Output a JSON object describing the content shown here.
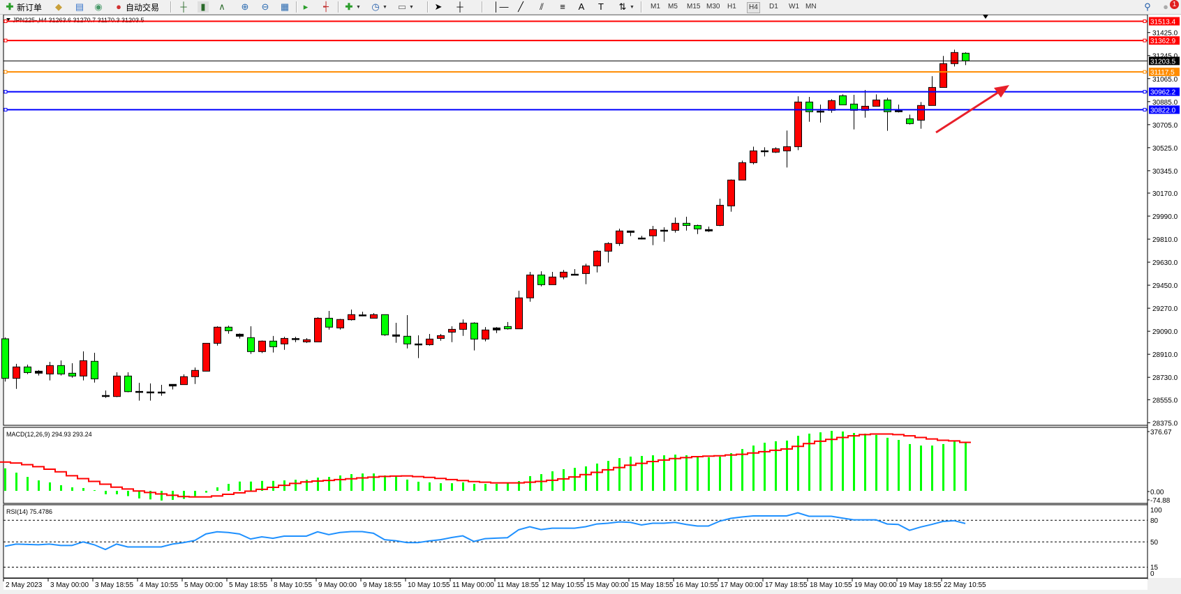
{
  "toolbar": {
    "new_order_label": "新订单",
    "autotrading_label": "自动交易",
    "timeframes": [
      "M1",
      "M5",
      "M15",
      "M30",
      "H1",
      "H4",
      "D1",
      "W1",
      "MN"
    ],
    "active_timeframe": "H4",
    "notification_count": "1"
  },
  "chart": {
    "header": "JPN225-,H4  31263.6 31270.7 31170.3 31203.5",
    "colors": {
      "bull": "#ff0000",
      "bear": "#00ff00",
      "macd_hist": "#00ff00",
      "macd_signal": "#ff0000",
      "rsi": "#1e90ff",
      "arrow": "#e8202a"
    },
    "price_ticks": [
      "31425.0",
      "31245.0",
      "31065.0",
      "30885.0",
      "30705.0",
      "30525.0",
      "30345.0",
      "30170.0",
      "29990.0",
      "29810.0",
      "29630.0",
      "29450.0",
      "29270.0",
      "29090.0",
      "28910.0",
      "28730.0",
      "28555.0",
      "28375.0"
    ],
    "levels": [
      {
        "price": 31513.4,
        "label": "31513.4",
        "color": "#ff0000"
      },
      {
        "price": 31362.9,
        "label": "31362.9",
        "color": "#ff0000"
      },
      {
        "price": 31203.5,
        "label": "31203.5",
        "color": "#000000"
      },
      {
        "price": 31117.5,
        "label": "31117.5",
        "color": "#ff8c00"
      },
      {
        "price": 30962.2,
        "label": "30962.2",
        "color": "#0000ff"
      },
      {
        "price": 30822.0,
        "label": "30822.0",
        "color": "#0000ff"
      }
    ],
    "time_labels": [
      "2 May 2023",
      "3 May 00:00",
      "3 May 18:55",
      "4 May 10:55",
      "5 May 00:00",
      "5 May 18:55",
      "8 May 10:55",
      "9 May 00:00",
      "9 May 18:55",
      "10 May 10:55",
      "11 May 00:00",
      "11 May 18:55",
      "12 May 10:55",
      "15 May 00:00",
      "15 May 18:55",
      "16 May 10:55",
      "17 May 00:00",
      "17 May 18:55",
      "18 May 10:55",
      "19 May 00:00",
      "19 May 18:55",
      "22 May 10:55"
    ]
  },
  "chart_data": {
    "type": "candlestick",
    "symbol": "JPN225-",
    "timeframe": "H4",
    "ylim": [
      28375,
      31513.4
    ],
    "ohlc": [
      [
        29031,
        29042,
        28697,
        28722
      ],
      [
        28722,
        28835,
        28640,
        28811
      ],
      [
        28811,
        28829,
        28755,
        28767
      ],
      [
        28778,
        28786,
        28744,
        28762
      ],
      [
        28756,
        28851,
        28706,
        28822
      ],
      [
        28822,
        28862,
        28744,
        28756
      ],
      [
        28762,
        28840,
        28727,
        28740
      ],
      [
        28740,
        28933,
        28706,
        28860
      ],
      [
        28855,
        28922,
        28689,
        28718
      ],
      [
        28587,
        28627,
        28569,
        28588
      ],
      [
        28580,
        28769,
        28575,
        28740
      ],
      [
        28740,
        28769,
        28613,
        28618
      ],
      [
        28620,
        28687,
        28548,
        28613
      ],
      [
        28615,
        28682,
        28548,
        28616
      ],
      [
        28615,
        28671,
        28586,
        28607
      ],
      [
        28662,
        28675,
        28635,
        28675
      ],
      [
        28673,
        28753,
        28673,
        28735
      ],
      [
        28735,
        28807,
        28678,
        28784
      ],
      [
        28778,
        28996,
        28778,
        28996
      ],
      [
        28996,
        29129,
        28978,
        29122
      ],
      [
        29122,
        29134,
        29071,
        29094
      ],
      [
        29067,
        29073,
        29033,
        29051
      ],
      [
        29040,
        29129,
        28913,
        28931
      ],
      [
        28931,
        29018,
        28920,
        29013
      ],
      [
        29013,
        29053,
        28924,
        28969
      ],
      [
        28991,
        29047,
        28945,
        29034
      ],
      [
        29033,
        29047,
        29005,
        29029
      ],
      [
        29007,
        29036,
        28999,
        29024
      ],
      [
        29007,
        29200,
        29007,
        29192
      ],
      [
        29192,
        29249,
        29103,
        29122
      ],
      [
        29116,
        29187,
        29103,
        29182
      ],
      [
        29180,
        29260,
        29174,
        29220
      ],
      [
        29218,
        29243,
        29207,
        29212
      ],
      [
        29192,
        29232,
        29192,
        29220
      ],
      [
        29220,
        29220,
        29054,
        29062
      ],
      [
        29062,
        29156,
        29000,
        29051
      ],
      [
        29051,
        29216,
        28956,
        28991
      ],
      [
        28991,
        29058,
        28880,
        28985
      ],
      [
        28985,
        29069,
        28978,
        29029
      ],
      [
        29034,
        29069,
        29016,
        29056
      ],
      [
        29083,
        29129,
        29005,
        29105
      ],
      [
        29105,
        29183,
        29054,
        29154
      ],
      [
        29154,
        29160,
        28940,
        29029
      ],
      [
        29029,
        29123,
        29011,
        29100
      ],
      [
        29100,
        29123,
        29076,
        29116
      ],
      [
        29127,
        29162,
        29103,
        29109
      ],
      [
        29109,
        29407,
        29109,
        29351
      ],
      [
        29351,
        29554,
        29321,
        29530
      ],
      [
        29530,
        29559,
        29441,
        29454
      ],
      [
        29454,
        29554,
        29454,
        29514
      ],
      [
        29514,
        29569,
        29496,
        29552
      ],
      [
        29536,
        29576,
        29528,
        29532
      ],
      [
        29541,
        29618,
        29458,
        29601
      ],
      [
        29601,
        29723,
        29550,
        29716
      ],
      [
        29716,
        29786,
        29627,
        29776
      ],
      [
        29776,
        29892,
        29758,
        29874
      ],
      [
        29874,
        29874,
        29834,
        29863
      ],
      [
        29819,
        29836,
        29808,
        29814
      ],
      [
        29836,
        29914,
        29763,
        29885
      ],
      [
        29879,
        29903,
        29790,
        29880
      ],
      [
        29879,
        29979,
        29861,
        29934
      ],
      [
        29934,
        29985,
        29877,
        29917
      ],
      [
        29917,
        29923,
        29850,
        29890
      ],
      [
        29874,
        29908,
        29866,
        29885
      ],
      [
        29917,
        30126,
        29912,
        30075
      ],
      [
        30070,
        30277,
        30025,
        30272
      ],
      [
        30272,
        30424,
        30272,
        30408
      ],
      [
        30408,
        30533,
        30395,
        30500
      ],
      [
        30500,
        30528,
        30457,
        30501
      ],
      [
        30490,
        30528,
        30484,
        30517
      ],
      [
        30500,
        30659,
        30370,
        30533
      ],
      [
        30533,
        30927,
        30506,
        30882
      ],
      [
        30882,
        30922,
        30728,
        30806
      ],
      [
        30811,
        30862,
        30722,
        30806
      ],
      [
        30817,
        30904,
        30798,
        30893
      ],
      [
        30931,
        30942,
        30860,
        30860
      ],
      [
        30866,
        30938,
        30668,
        30817
      ],
      [
        30817,
        30976,
        30760,
        30849
      ],
      [
        30849,
        30942,
        30849,
        30898
      ],
      [
        30898,
        30915,
        30657,
        30806
      ],
      [
        30806,
        30862,
        30800,
        30822
      ],
      [
        30751,
        30784,
        30706,
        30713
      ],
      [
        30740,
        30882,
        30673,
        30855
      ],
      [
        30855,
        31084,
        30855,
        30996
      ],
      [
        30996,
        31242,
        30996,
        31182
      ],
      [
        31182,
        31291,
        31160,
        31269
      ],
      [
        31263.6,
        31270.7,
        31170.3,
        31203.5
      ]
    ],
    "macd": {
      "label": "MACD(12,26,9) 294.93 293.24",
      "ylim": [
        -74.88,
        376.67
      ],
      "axis_labels": [
        "376.67",
        "0.00",
        "-74.88"
      ],
      "histogram": [
        136,
        110,
        84,
        63,
        51,
        34,
        21,
        17,
        4,
        -21,
        -21,
        -32,
        -46,
        -52,
        -59,
        -55,
        -49,
        -32,
        -11,
        21,
        42,
        56,
        56,
        60,
        60,
        63,
        67,
        67,
        80,
        84,
        93,
        101,
        105,
        105,
        93,
        86,
        68,
        55,
        51,
        46,
        46,
        51,
        42,
        42,
        42,
        46,
        59,
        89,
        101,
        118,
        131,
        139,
        148,
        165,
        181,
        198,
        207,
        211,
        215,
        215,
        219,
        215,
        207,
        203,
        207,
        228,
        253,
        274,
        291,
        300,
        304,
        333,
        346,
        354,
        363,
        359,
        350,
        346,
        338,
        321,
        308,
        283,
        274,
        274,
        283,
        300,
        294.93
      ],
      "signal": [
        174,
        168,
        158,
        146,
        131,
        115,
        91,
        74,
        57,
        40,
        22,
        11,
        -1,
        -10,
        -19,
        -27,
        -35,
        -37,
        -37,
        -31,
        -21,
        -12,
        -2,
        9,
        21,
        33,
        45,
        54,
        59,
        63,
        68,
        73,
        78,
        83,
        87,
        89,
        90,
        86,
        81,
        75,
        68,
        62,
        56,
        52,
        48,
        48,
        48,
        52,
        57,
        64,
        72,
        84,
        98,
        112,
        127,
        141,
        155,
        166,
        177,
        186,
        195,
        201,
        207,
        210,
        212,
        217,
        221,
        229,
        237,
        245,
        253,
        269,
        286,
        300,
        311,
        323,
        333,
        340,
        344,
        344,
        340,
        333,
        323,
        314,
        306,
        302,
        293.24
      ]
    },
    "rsi": {
      "label": "RSI(14) 75.4786",
      "levels": [
        80,
        50,
        15
      ],
      "axis_labels": [
        "100",
        "80",
        "50",
        "15",
        "0"
      ],
      "values": [
        44,
        47,
        46.5,
        46,
        47,
        45,
        45,
        50,
        46,
        39.5,
        47,
        43,
        43,
        43,
        43,
        47,
        49,
        52,
        61,
        64,
        63,
        61,
        54,
        57,
        55,
        58,
        58,
        58,
        64,
        60,
        63,
        64.2,
        64.2,
        62,
        53,
        51.6,
        49,
        49,
        51.3,
        53,
        56,
        58.4,
        50.6,
        54.5,
        55.2,
        55.8,
        66.8,
        71,
        67,
        69,
        69,
        69,
        71,
        74.8,
        75.8,
        77.7,
        77,
        73.5,
        75.8,
        75.8,
        77,
        74.2,
        72,
        72,
        78.7,
        82.6,
        84.5,
        86,
        86,
        86,
        86,
        90.3,
        85.5,
        85.5,
        85.5,
        83,
        80.6,
        80.6,
        80.6,
        74.8,
        74.2,
        66,
        70.6,
        74.2,
        78.4,
        79.4,
        75.4786
      ]
    }
  }
}
